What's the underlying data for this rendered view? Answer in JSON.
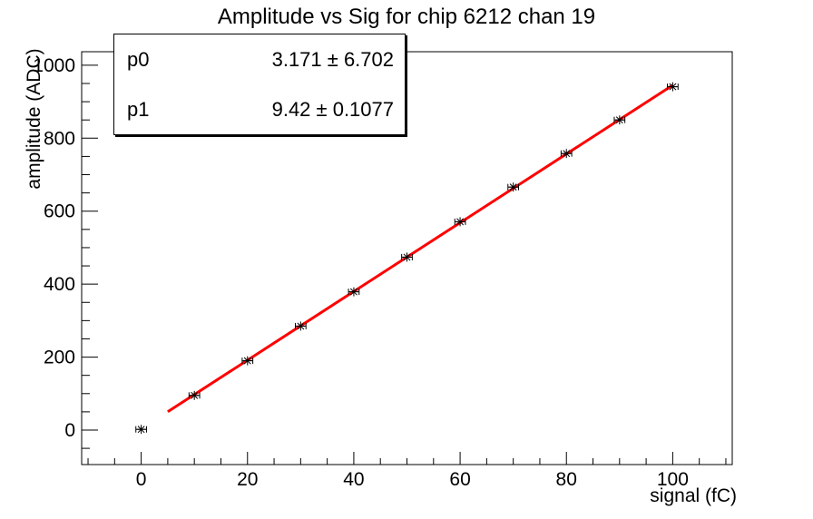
{
  "chart_data": {
    "type": "scatter",
    "title": "Amplitude vs Sig for chip 6212 chan 19",
    "xlabel": "signal (fC)",
    "ylabel": "amplitude (ADC)",
    "x": [
      0,
      10,
      20,
      30,
      40,
      50,
      60,
      70,
      80,
      90,
      100
    ],
    "y": [
      2,
      95,
      190,
      285,
      379,
      474,
      571,
      666,
      758,
      850,
      941
    ],
    "xerr": 1,
    "xlim": [
      -11.2,
      111.2
    ],
    "ylim": [
      -94.5,
      1037
    ],
    "grid": false,
    "legend": "none",
    "x_ticks": {
      "major": [
        0,
        20,
        40,
        60,
        80,
        100
      ],
      "labels": [
        "0",
        "20",
        "40",
        "60",
        "80",
        "100"
      ],
      "minor_step": 5
    },
    "y_ticks": {
      "major": [
        0,
        200,
        400,
        600,
        800,
        1000
      ],
      "labels": [
        "0",
        "200",
        "400",
        "600",
        "800",
        "1000"
      ],
      "minor_step": 50
    },
    "marker": {
      "style": "asterisk",
      "color": "#000000"
    },
    "fit_line": {
      "p0": 3.171,
      "p1": 9.42,
      "x_range": [
        5,
        100
      ],
      "color": "#ff0000",
      "width": 3
    },
    "stats_box": {
      "rows": [
        {
          "name": "p0",
          "value": "3.171 ± 6.702"
        },
        {
          "name": "p1",
          "value": "9.42 ± 0.1077"
        }
      ]
    }
  }
}
